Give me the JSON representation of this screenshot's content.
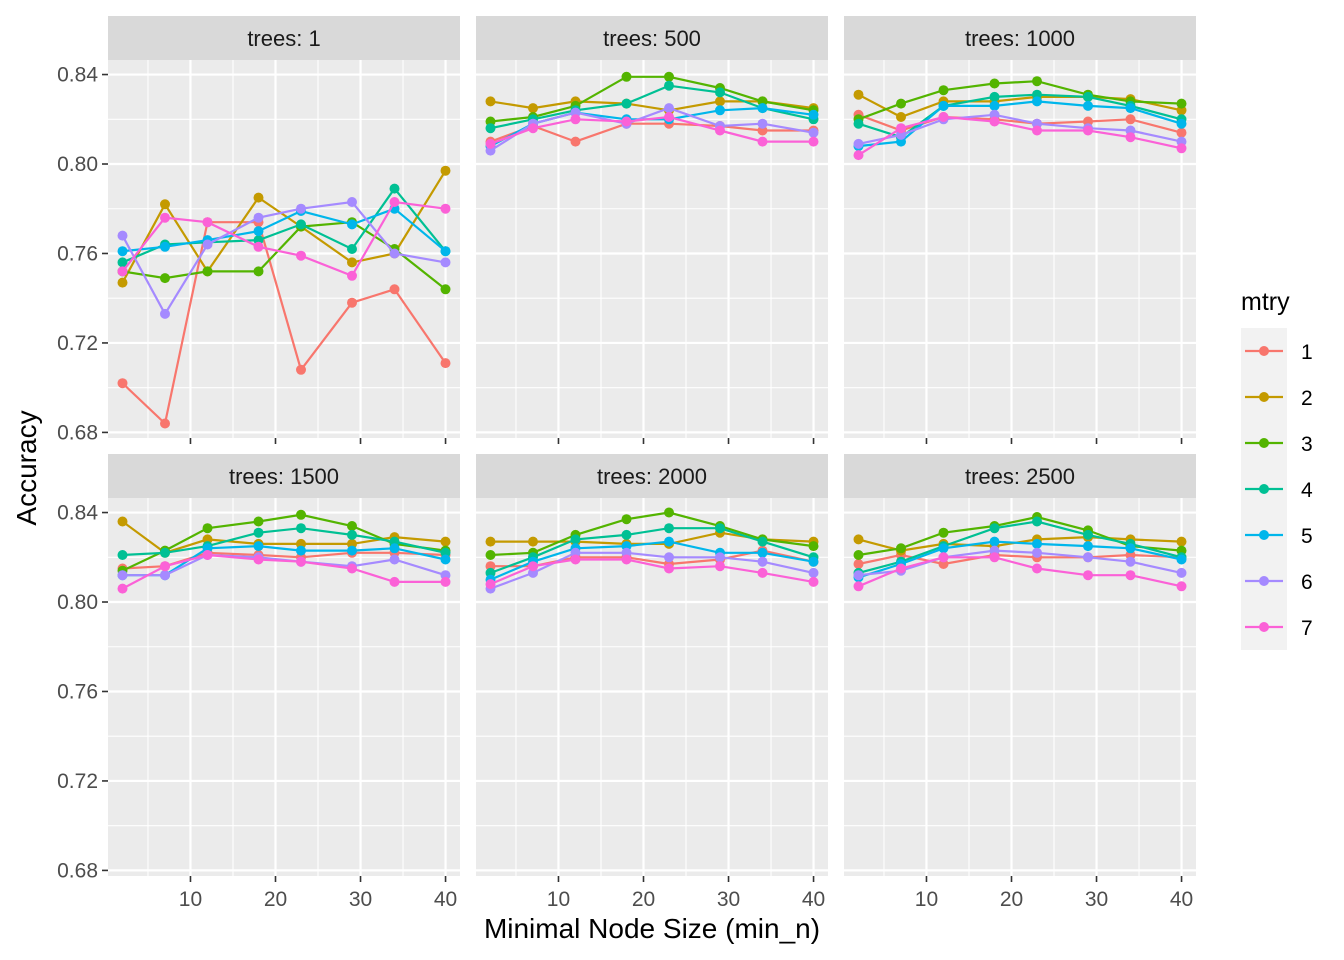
{
  "chart_data": {
    "type": "line",
    "facet_prefix": "trees: ",
    "facets": [
      {
        "trees": "1",
        "series": [
          {
            "name": "1",
            "values": [
              0.702,
              0.684,
              0.774,
              0.774,
              0.708,
              0.738,
              0.744,
              0.711
            ]
          },
          {
            "name": "2",
            "values": [
              0.747,
              0.782,
              0.752,
              0.785,
              0.772,
              0.756,
              0.76,
              0.797
            ]
          },
          {
            "name": "3",
            "values": [
              0.752,
              0.749,
              0.752,
              0.752,
              0.772,
              0.774,
              0.762,
              0.744
            ]
          },
          {
            "name": "4",
            "values": [
              0.756,
              0.764,
              0.765,
              0.766,
              0.773,
              0.762,
              0.789,
              0.761
            ]
          },
          {
            "name": "5",
            "values": [
              0.761,
              0.763,
              0.766,
              0.77,
              0.779,
              0.773,
              0.78,
              0.761
            ]
          },
          {
            "name": "6",
            "values": [
              0.768,
              0.733,
              0.764,
              0.776,
              0.78,
              0.783,
              0.76,
              0.756
            ]
          },
          {
            "name": "7",
            "values": [
              0.752,
              0.776,
              0.774,
              0.763,
              0.759,
              0.75,
              0.783,
              0.78
            ]
          }
        ]
      },
      {
        "trees": "500",
        "series": [
          {
            "name": "1",
            "values": [
              0.81,
              0.817,
              0.81,
              0.818,
              0.818,
              0.817,
              0.815,
              0.815
            ]
          },
          {
            "name": "2",
            "values": [
              0.828,
              0.825,
              0.828,
              0.827,
              0.824,
              0.828,
              0.828,
              0.825
            ]
          },
          {
            "name": "3",
            "values": [
              0.819,
              0.821,
              0.826,
              0.839,
              0.839,
              0.834,
              0.828,
              0.824
            ]
          },
          {
            "name": "4",
            "values": [
              0.816,
              0.82,
              0.824,
              0.827,
              0.835,
              0.832,
              0.825,
              0.82
            ]
          },
          {
            "name": "5",
            "values": [
              0.808,
              0.818,
              0.823,
              0.82,
              0.82,
              0.824,
              0.825,
              0.822
            ]
          },
          {
            "name": "6",
            "values": [
              0.806,
              0.818,
              0.823,
              0.818,
              0.825,
              0.817,
              0.818,
              0.814
            ]
          },
          {
            "name": "7",
            "values": [
              0.809,
              0.816,
              0.82,
              0.819,
              0.821,
              0.815,
              0.81,
              0.81
            ]
          }
        ]
      },
      {
        "trees": "1000",
        "series": [
          {
            "name": "1",
            "values": [
              0.822,
              0.815,
              0.821,
              0.82,
              0.818,
              0.819,
              0.82,
              0.814
            ]
          },
          {
            "name": "2",
            "values": [
              0.831,
              0.821,
              0.828,
              0.828,
              0.83,
              0.83,
              0.829,
              0.824
            ]
          },
          {
            "name": "3",
            "values": [
              0.82,
              0.827,
              0.833,
              0.836,
              0.837,
              0.831,
              0.828,
              0.827
            ]
          },
          {
            "name": "4",
            "values": [
              0.818,
              0.812,
              0.826,
              0.83,
              0.831,
              0.83,
              0.826,
              0.82
            ]
          },
          {
            "name": "5",
            "values": [
              0.808,
              0.81,
              0.826,
              0.826,
              0.828,
              0.826,
              0.825,
              0.818
            ]
          },
          {
            "name": "6",
            "values": [
              0.809,
              0.813,
              0.82,
              0.822,
              0.818,
              0.816,
              0.815,
              0.81
            ]
          },
          {
            "name": "7",
            "values": [
              0.804,
              0.816,
              0.821,
              0.819,
              0.815,
              0.815,
              0.812,
              0.807
            ]
          }
        ]
      },
      {
        "trees": "1500",
        "series": [
          {
            "name": "1",
            "values": [
              0.815,
              0.816,
              0.822,
              0.821,
              0.82,
              0.822,
              0.822,
              0.821
            ]
          },
          {
            "name": "2",
            "values": [
              0.836,
              0.822,
              0.828,
              0.826,
              0.826,
              0.826,
              0.829,
              0.827
            ]
          },
          {
            "name": "3",
            "values": [
              0.814,
              0.823,
              0.833,
              0.836,
              0.839,
              0.834,
              0.826,
              0.823
            ]
          },
          {
            "name": "4",
            "values": [
              0.821,
              0.822,
              0.825,
              0.831,
              0.833,
              0.83,
              0.827,
              0.822
            ]
          },
          {
            "name": "5",
            "values": [
              0.812,
              0.812,
              0.824,
              0.825,
              0.823,
              0.823,
              0.824,
              0.819
            ]
          },
          {
            "name": "6",
            "values": [
              0.812,
              0.812,
              0.821,
              0.82,
              0.818,
              0.816,
              0.819,
              0.812
            ]
          },
          {
            "name": "7",
            "values": [
              0.806,
              0.816,
              0.821,
              0.819,
              0.818,
              0.815,
              0.809,
              0.809
            ]
          }
        ]
      },
      {
        "trees": "2000",
        "series": [
          {
            "name": "1",
            "values": [
              0.816,
              0.816,
              0.82,
              0.82,
              0.817,
              0.819,
              0.823,
              0.818
            ]
          },
          {
            "name": "2",
            "values": [
              0.827,
              0.827,
              0.827,
              0.826,
              0.826,
              0.831,
              0.828,
              0.827
            ]
          },
          {
            "name": "3",
            "values": [
              0.821,
              0.822,
              0.83,
              0.837,
              0.84,
              0.834,
              0.828,
              0.825
            ]
          },
          {
            "name": "4",
            "values": [
              0.813,
              0.82,
              0.828,
              0.83,
              0.833,
              0.833,
              0.827,
              0.82
            ]
          },
          {
            "name": "5",
            "values": [
              0.81,
              0.818,
              0.824,
              0.825,
              0.827,
              0.822,
              0.822,
              0.818
            ]
          },
          {
            "name": "6",
            "values": [
              0.806,
              0.813,
              0.822,
              0.822,
              0.82,
              0.82,
              0.818,
              0.813
            ]
          },
          {
            "name": "7",
            "values": [
              0.808,
              0.816,
              0.819,
              0.819,
              0.815,
              0.816,
              0.813,
              0.809
            ]
          }
        ]
      },
      {
        "trees": "2500",
        "series": [
          {
            "name": "1",
            "values": [
              0.817,
              0.821,
              0.817,
              0.821,
              0.82,
              0.82,
              0.821,
              0.82
            ]
          },
          {
            "name": "2",
            "values": [
              0.828,
              0.823,
              0.826,
              0.825,
              0.828,
              0.829,
              0.828,
              0.827
            ]
          },
          {
            "name": "3",
            "values": [
              0.821,
              0.824,
              0.831,
              0.834,
              0.838,
              0.832,
              0.825,
              0.823
            ]
          },
          {
            "name": "4",
            "values": [
              0.813,
              0.818,
              0.825,
              0.833,
              0.836,
              0.83,
              0.826,
              0.82
            ]
          },
          {
            "name": "5",
            "values": [
              0.811,
              0.817,
              0.824,
              0.827,
              0.826,
              0.825,
              0.824,
              0.819
            ]
          },
          {
            "name": "6",
            "values": [
              0.812,
              0.814,
              0.82,
              0.823,
              0.822,
              0.82,
              0.818,
              0.813
            ]
          },
          {
            "name": "7",
            "values": [
              0.807,
              0.815,
              0.82,
              0.82,
              0.815,
              0.812,
              0.812,
              0.807
            ]
          }
        ]
      }
    ],
    "x": [
      2,
      7,
      12,
      18,
      23,
      29,
      34,
      40
    ],
    "xlabel": "Minimal Node Size (min_n)",
    "ylabel": "Accuracy",
    "xlim": [
      0.3,
      41.7
    ],
    "ylim": [
      0.6775,
      0.8465
    ],
    "x_ticks": [
      10,
      20,
      30,
      40
    ],
    "x_tick_labels": [
      "10",
      "20",
      "30",
      "40"
    ],
    "y_ticks": [
      0.68,
      0.72,
      0.76,
      0.8,
      0.84
    ],
    "y_tick_labels": [
      "0.68",
      "0.72",
      "0.76",
      "0.80",
      "0.84"
    ],
    "legend": {
      "title": "mtry",
      "position": "right",
      "entries": [
        "1",
        "2",
        "3",
        "4",
        "5",
        "6",
        "7"
      ],
      "colors": [
        "#F8766D",
        "#C49A00",
        "#53B400",
        "#00C094",
        "#00B6EB",
        "#A58AFF",
        "#FB61D7"
      ]
    },
    "grid": true
  }
}
